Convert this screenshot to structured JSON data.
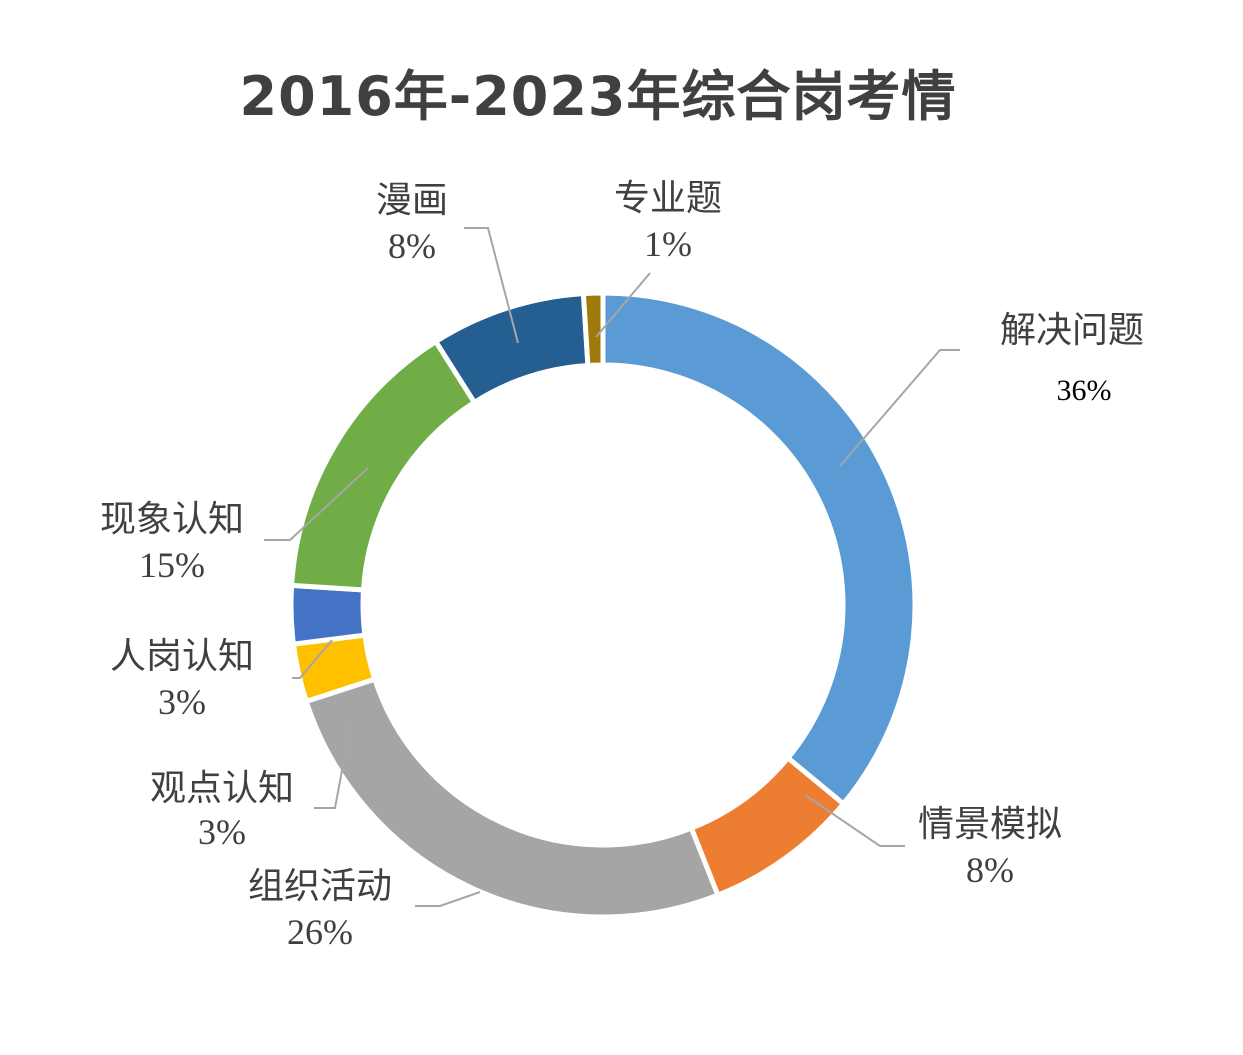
{
  "chart_data": {
    "type": "pie",
    "variant": "donut",
    "title": "2016年-2023年综合岗考情",
    "slices": [
      {
        "label": "解决问题",
        "value": 36,
        "value_label": "36%",
        "color": "#5B9BD5"
      },
      {
        "label": "情景模拟",
        "value": 8,
        "value_label": "8%",
        "color": "#ED7D31"
      },
      {
        "label": "组织活动",
        "value": 26,
        "value_label": "26%",
        "color": "#A5A5A5"
      },
      {
        "label": "观点认知",
        "value": 3,
        "value_label": "3%",
        "color": "#FFC000"
      },
      {
        "label": "人岗认知",
        "value": 3,
        "value_label": "3%",
        "color": "#4472C4"
      },
      {
        "label": "现象认知",
        "value": 15,
        "value_label": "15%",
        "color": "#70AD47"
      },
      {
        "label": "漫画",
        "value": 8,
        "value_label": "8%",
        "color": "#255E91"
      },
      {
        "label": "专业题",
        "value": 1,
        "value_label": "1%",
        "color": "#9E7A0A"
      }
    ],
    "legend": "none",
    "data_labels": "outside with leader lines"
  }
}
